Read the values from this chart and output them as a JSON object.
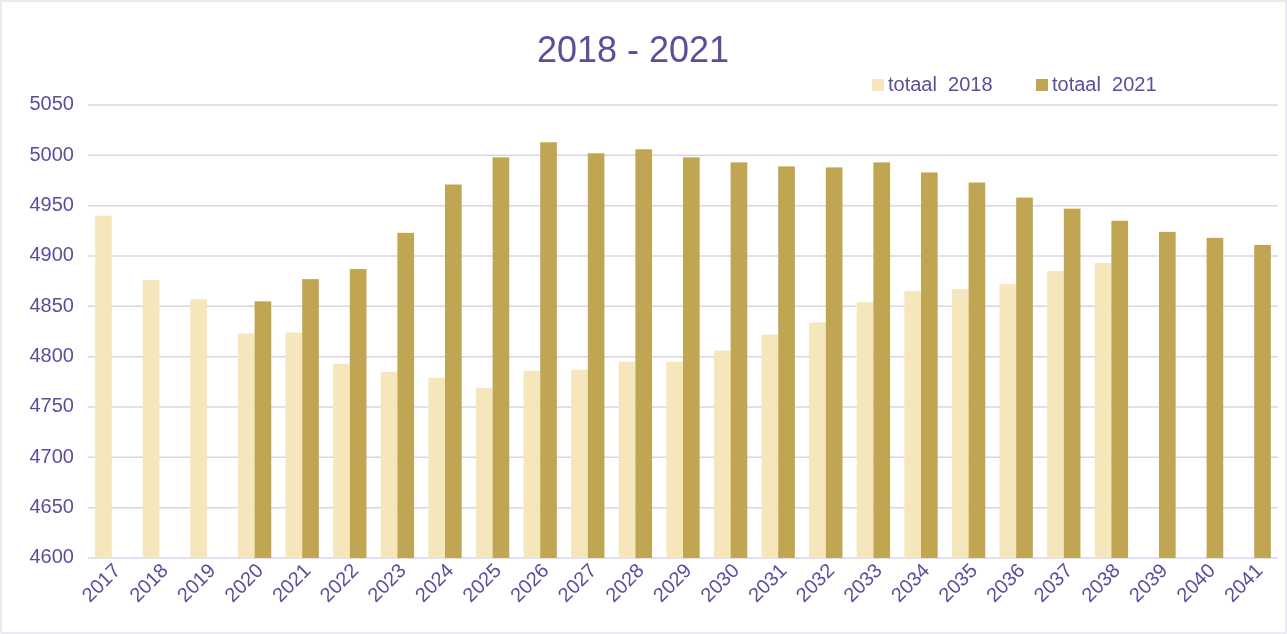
{
  "chart_data": {
    "type": "bar",
    "title": "2018 - 2021",
    "categories": [
      "2017",
      "2018",
      "2019",
      "2020",
      "2021",
      "2022",
      "2023",
      "2024",
      "2025",
      "2026",
      "2027",
      "2028",
      "2029",
      "2030",
      "2031",
      "2032",
      "2033",
      "2034",
      "2035",
      "2036",
      "2037",
      "2038",
      "2039",
      "2040",
      "2041"
    ],
    "series": [
      {
        "name": "totaal  2018",
        "color": "#f6e6bb",
        "values": [
          4940,
          4876,
          4857,
          4823,
          4824,
          4793,
          4785,
          4779,
          4769,
          4786,
          4787,
          4795,
          4795,
          4806,
          4822,
          4834,
          4854,
          4865,
          4867,
          4872,
          4885,
          4893,
          null,
          null,
          null
        ]
      },
      {
        "name": "totaal  2021",
        "color": "#c0a552",
        "values": [
          null,
          null,
          null,
          4855,
          4877,
          4887,
          4923,
          4971,
          4998,
          5013,
          5002,
          5006,
          4998,
          4993,
          4989,
          4988,
          4993,
          4983,
          4973,
          4958,
          4947,
          4935,
          4924,
          4918,
          4911
        ]
      }
    ],
    "ylim": [
      4600,
      5050
    ],
    "yticks": [
      4600,
      4650,
      4700,
      4750,
      4800,
      4850,
      4900,
      4950,
      5000,
      5050
    ],
    "grid": "y",
    "legend": "top right"
  }
}
